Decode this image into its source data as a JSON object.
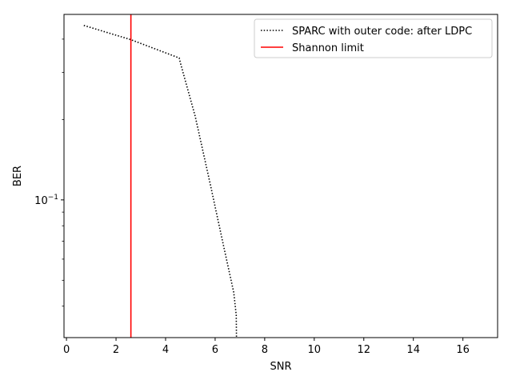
{
  "chart_data": {
    "type": "line",
    "title": "",
    "xlabel": "SNR",
    "ylabel": "BER",
    "xlim": [
      -0.1,
      17.4
    ],
    "ylim": [
      0.0305,
      0.495
    ],
    "yscale": "log",
    "grid": false,
    "legend_position": "top-right",
    "x_ticks": [
      0,
      2,
      4,
      6,
      8,
      10,
      12,
      14,
      16
    ],
    "x_tick_labels": [
      "0",
      "2",
      "4",
      "6",
      "8",
      "10",
      "12",
      "14",
      "16"
    ],
    "y_major_ticks": [
      0.1
    ],
    "y_major_tick_labels": [
      {
        "base": "10",
        "exp": "−1"
      }
    ],
    "y_minor_ticks": [
      0.04,
      0.05,
      0.06,
      0.07,
      0.08,
      0.09,
      0.2,
      0.3,
      0.4
    ],
    "series": [
      {
        "name": "SPARC with outer code: after LDPC",
        "style": "dotted",
        "color": "#000000",
        "x": [
          0.7,
          2.6,
          4.55,
          4.6,
          5.2,
          5.8,
          6.3,
          6.75,
          6.85,
          6.86
        ],
        "y": [
          0.45,
          0.398,
          0.34,
          0.325,
          0.205,
          0.115,
          0.07,
          0.045,
          0.037,
          0.0305
        ]
      },
      {
        "name": "Shannon limit",
        "style": "solid",
        "color": "#ff0000",
        "vertical_x": 2.6
      }
    ]
  }
}
